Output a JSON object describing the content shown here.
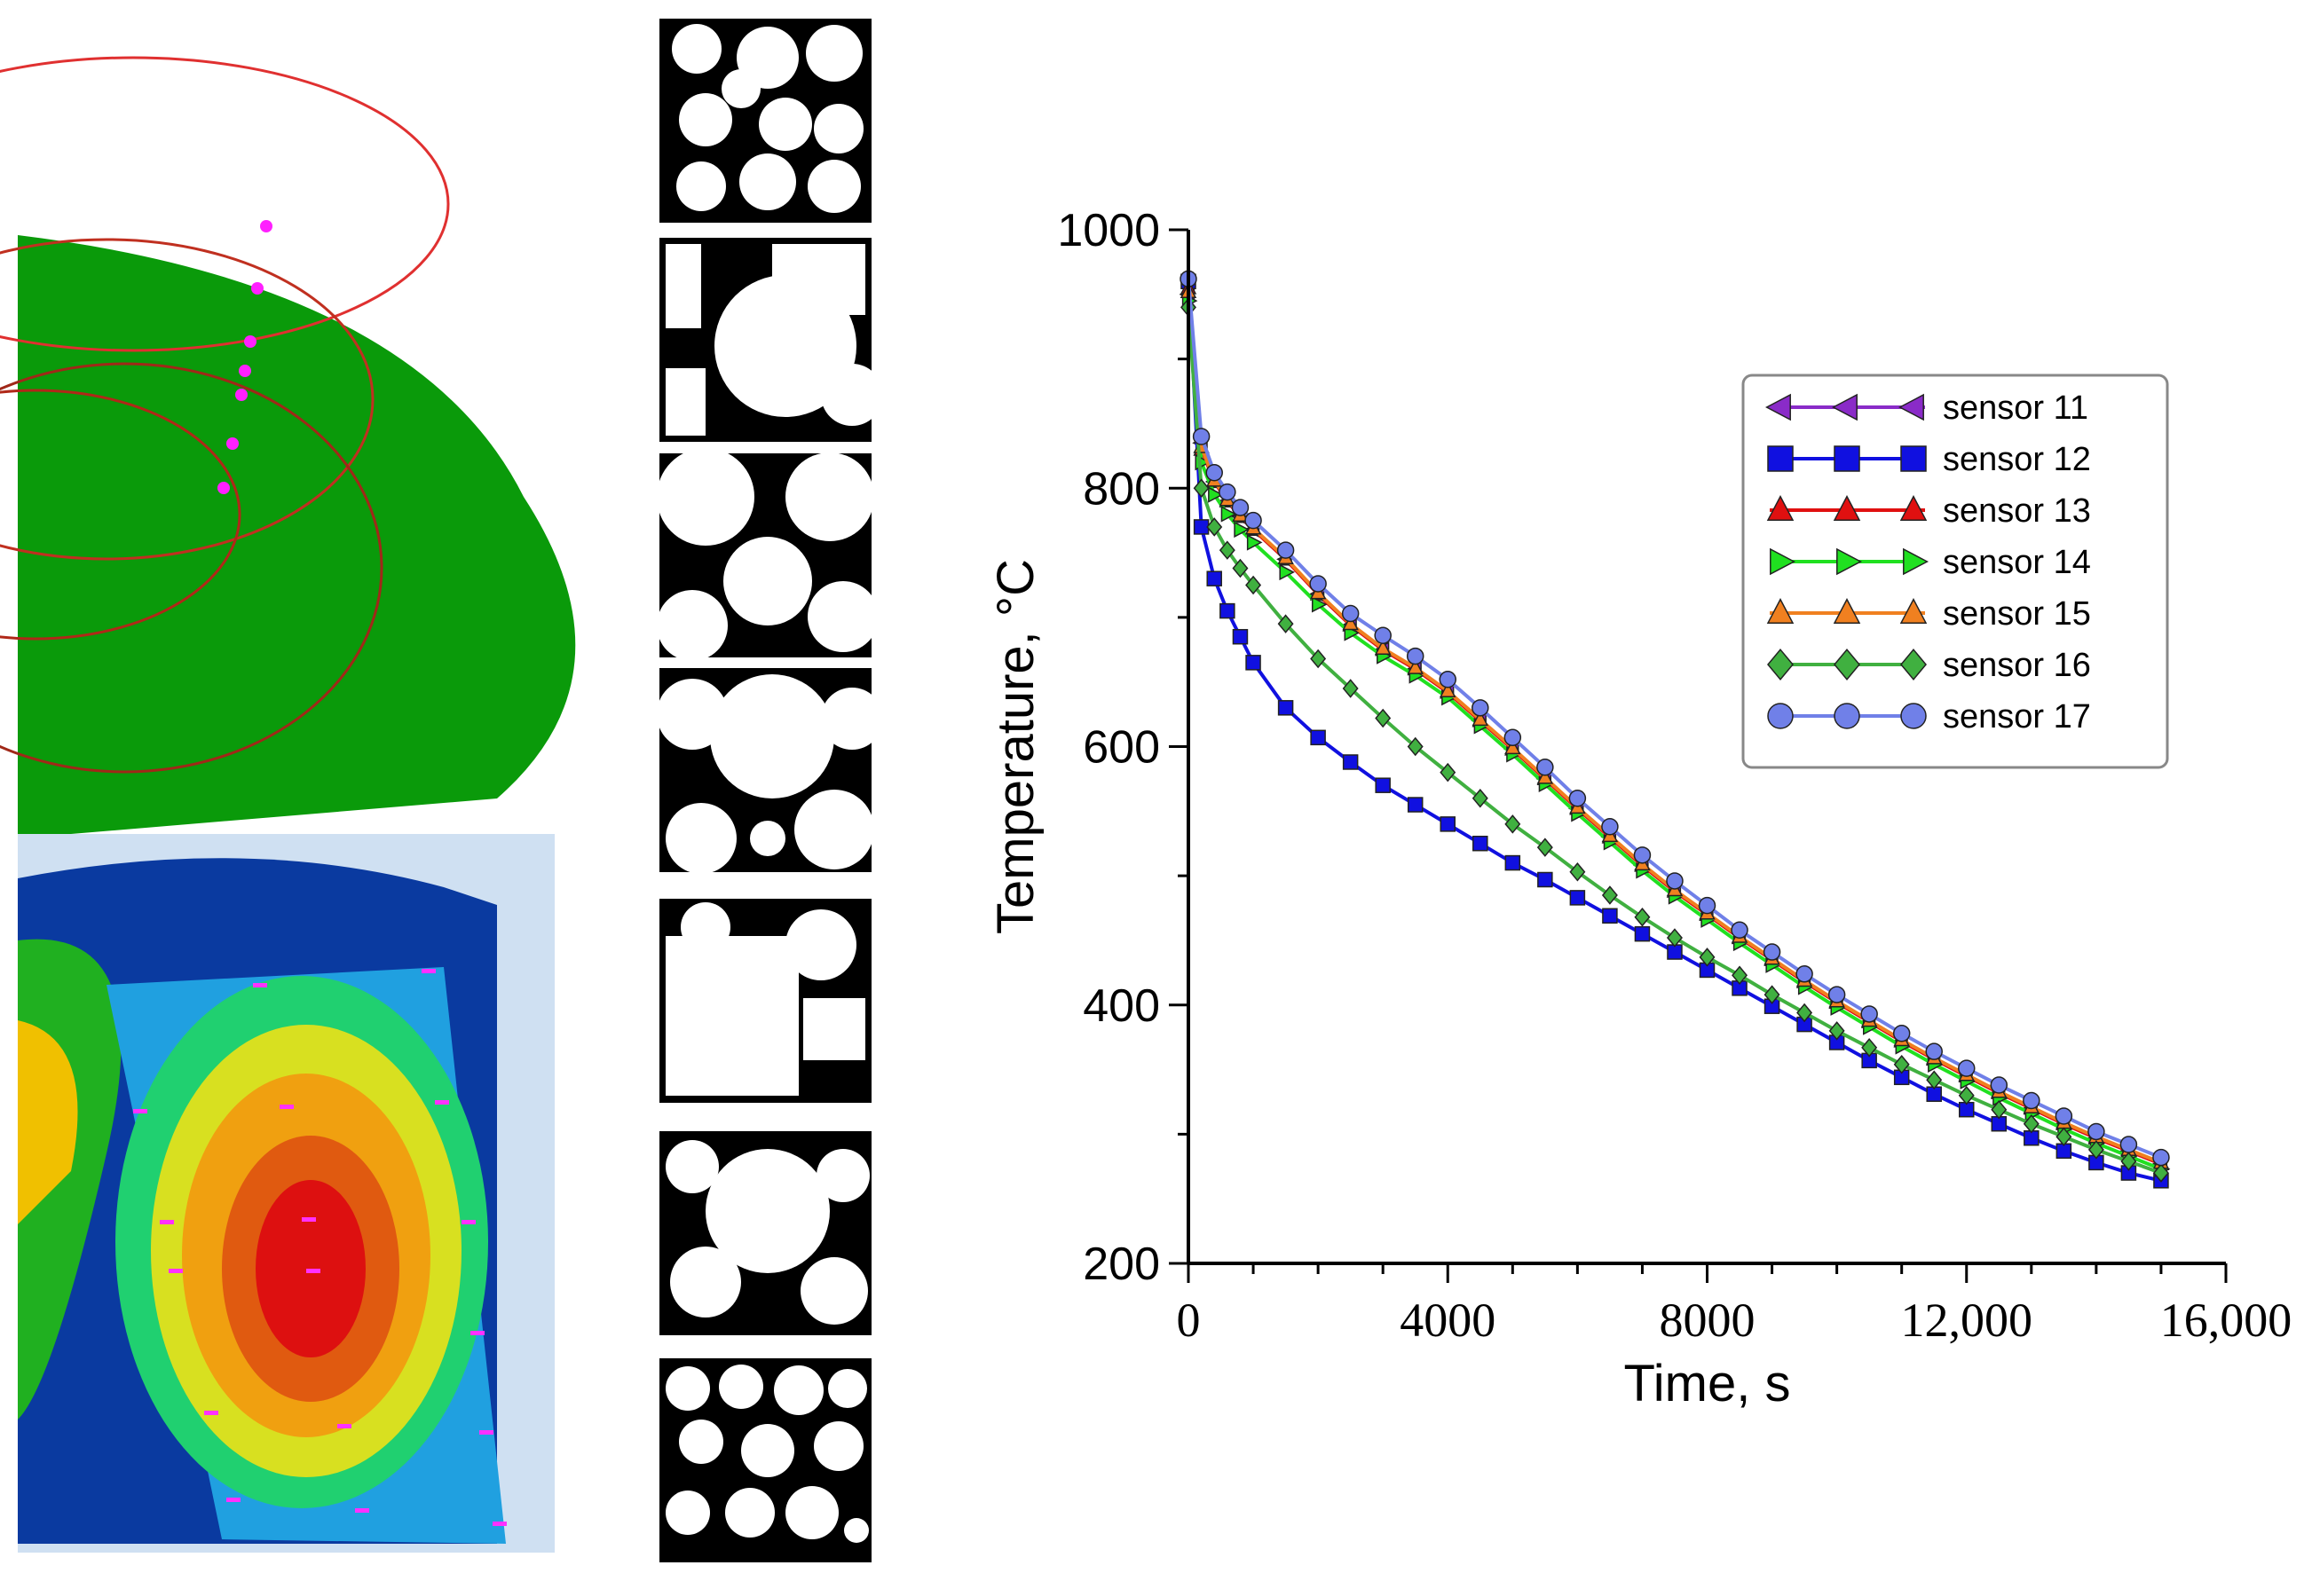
{
  "colors": {
    "sensor11": "#8a2bc8",
    "sensor12": "#1010e0",
    "sensor13": "#e01010",
    "sensor14": "#20e020",
    "sensor15": "#f08020",
    "sensor16": "#40b040",
    "sensor17": "#7080e8"
  },
  "chart_data": {
    "type": "line",
    "xlabel": "Time, s",
    "ylabel": "Temperature, °C",
    "xlim": [
      0,
      16000
    ],
    "ylim": [
      200,
      1000
    ],
    "x_ticks": [
      0,
      4000,
      8000,
      12000,
      16000
    ],
    "x_tick_labels": [
      "0",
      "4000",
      "8000",
      "12,000",
      "16,000"
    ],
    "y_ticks": [
      200,
      400,
      600,
      800,
      1000
    ],
    "y_tick_labels": [
      "200",
      "400",
      "600",
      "800",
      "1000"
    ],
    "legend_position": "top-right",
    "x": [
      0,
      200,
      400,
      600,
      800,
      1000,
      1500,
      2000,
      2500,
      3000,
      3500,
      4000,
      4500,
      5000,
      5500,
      6000,
      6500,
      7000,
      7500,
      8000,
      8500,
      9000,
      9500,
      10000,
      10500,
      11000,
      11500,
      12000,
      12500,
      13000,
      13500,
      14000,
      14500,
      15000
    ],
    "series": [
      {
        "name": "sensor 11",
        "color_key": "sensor11",
        "marker": "triangle-left",
        "values": [
          950,
          835,
          805,
          790,
          778,
          768,
          745,
          718,
          694,
          675,
          660,
          642,
          620,
          598,
          575,
          552,
          530,
          508,
          488,
          470,
          452,
          435,
          418,
          402,
          387,
          372,
          358,
          345,
          332,
          320,
          308,
          297,
          287,
          277
        ]
      },
      {
        "name": "sensor 12",
        "color_key": "sensor12",
        "marker": "square",
        "values": [
          960,
          770,
          730,
          705,
          685,
          665,
          630,
          607,
          588,
          570,
          555,
          540,
          525,
          510,
          497,
          483,
          469,
          455,
          441,
          427,
          413,
          399,
          385,
          371,
          357,
          344,
          331,
          319,
          308,
          297,
          287,
          278,
          270,
          264
        ]
      },
      {
        "name": "sensor 13",
        "color_key": "sensor13",
        "marker": "triangle-up",
        "values": [
          955,
          830,
          805,
          790,
          778,
          768,
          745,
          718,
          694,
          675,
          660,
          642,
          620,
          598,
          575,
          552,
          530,
          508,
          488,
          470,
          452,
          435,
          418,
          402,
          387,
          372,
          358,
          345,
          332,
          320,
          308,
          297,
          287,
          277
        ]
      },
      {
        "name": "sensor 14",
        "color_key": "sensor14",
        "marker": "triangle-right",
        "values": [
          945,
          820,
          795,
          780,
          768,
          758,
          735,
          710,
          688,
          670,
          655,
          638,
          616,
          594,
          571,
          548,
          526,
          504,
          484,
          466,
          448,
          431,
          414,
          398,
          383,
          368,
          354,
          341,
          328,
          316,
          304,
          293,
          283,
          273
        ]
      },
      {
        "name": "sensor 15",
        "color_key": "sensor15",
        "marker": "triangle-up",
        "values": [
          952,
          832,
          806,
          791,
          779,
          769,
          746,
          719,
          695,
          676,
          661,
          643,
          621,
          599,
          576,
          553,
          531,
          509,
          489,
          471,
          453,
          436,
          419,
          403,
          388,
          373,
          359,
          346,
          333,
          321,
          309,
          298,
          288,
          278
        ]
      },
      {
        "name": "sensor 16",
        "color_key": "sensor16",
        "marker": "diamond",
        "values": [
          940,
          800,
          770,
          752,
          738,
          725,
          695,
          668,
          645,
          622,
          600,
          580,
          560,
          540,
          522,
          503,
          485,
          468,
          452,
          437,
          423,
          408,
          394,
          380,
          367,
          354,
          342,
          330,
          319,
          308,
          298,
          288,
          279,
          270
        ]
      },
      {
        "name": "sensor 17",
        "color_key": "sensor17",
        "marker": "circle",
        "values": [
          962,
          840,
          812,
          797,
          785,
          775,
          752,
          726,
          703,
          686,
          670,
          652,
          630,
          607,
          584,
          560,
          538,
          516,
          496,
          477,
          458,
          441,
          424,
          408,
          393,
          378,
          364,
          351,
          338,
          326,
          314,
          302,
          292,
          282
        ]
      }
    ]
  }
}
